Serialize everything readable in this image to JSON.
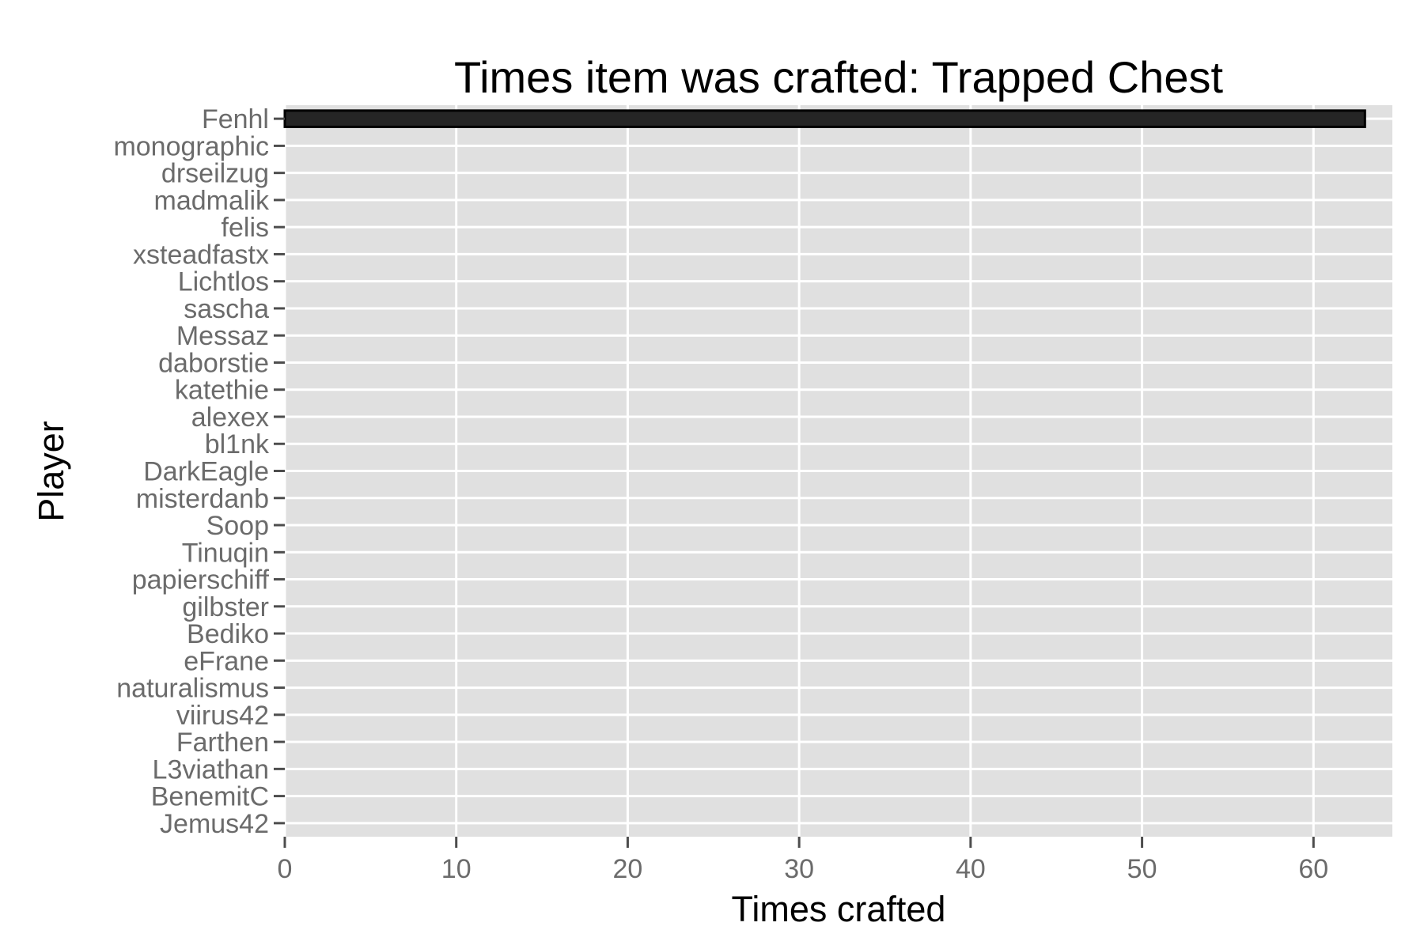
{
  "chart_data": {
    "type": "bar",
    "orientation": "horizontal",
    "title": "Times item was crafted: Trapped Chest",
    "xlabel": "Times crafted",
    "ylabel": "Player",
    "categories": [
      "Fenhl",
      "monographic",
      "drseilzug",
      "madmalik",
      "felis",
      "xsteadfastx",
      "Lichtlos",
      "sascha",
      "Messaz",
      "daborstie",
      "katethie",
      "alexex",
      "bl1nk",
      "DarkEagle",
      "misterdanb",
      "Soop",
      "Tinuqin",
      "papierschiff",
      "gilbster",
      "Bediko",
      "eFrane",
      "naturalismus",
      "viirus42",
      "Farthen",
      "L3viathan",
      "BenemitC",
      "Jemus42"
    ],
    "values": [
      63,
      0,
      0,
      0,
      0,
      0,
      0,
      0,
      0,
      0,
      0,
      0,
      0,
      0,
      0,
      0,
      0,
      0,
      0,
      0,
      0,
      0,
      0,
      0,
      0,
      0,
      0
    ],
    "xlim": [
      0,
      64.6
    ],
    "xticks": [
      0,
      10,
      20,
      30,
      40,
      50,
      60
    ],
    "grid": true,
    "legend": "none",
    "colors": {
      "panel": "#e0e0e0",
      "grid": "#ffffff",
      "bar": "#252525",
      "tick_label": "#6b6b6b"
    }
  }
}
